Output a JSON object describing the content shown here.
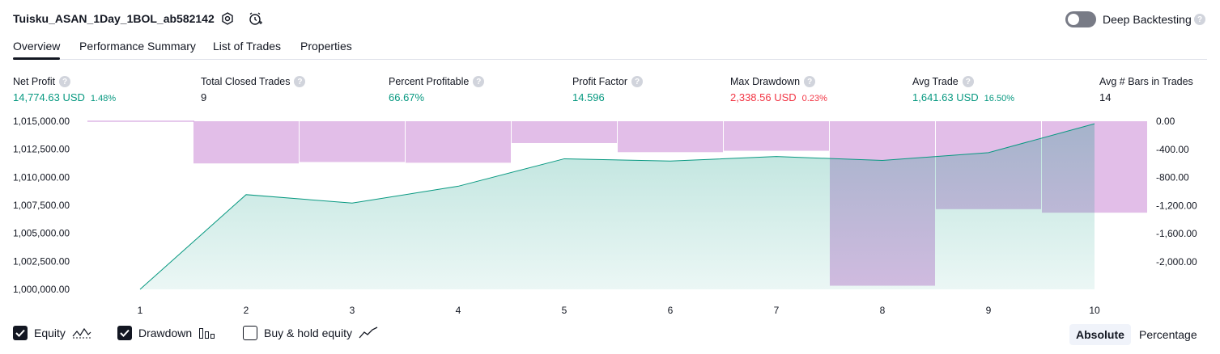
{
  "header": {
    "strategy_name": "Tuisku_ASAN_1Day_1BOL_ab582142",
    "icons": [
      "settings-icon",
      "add-alert-icon"
    ],
    "deep_backtesting_label": "Deep Backtesting",
    "deep_backtesting_enabled": false,
    "help_icon": "?"
  },
  "tabs": [
    {
      "label": "Overview",
      "active": true
    },
    {
      "label": "Performance Summary",
      "active": false
    },
    {
      "label": "List of Trades",
      "active": false
    },
    {
      "label": "Properties",
      "active": false
    }
  ],
  "metrics": [
    {
      "label": "Net Profit",
      "value": "14,774.63 USD",
      "pct": "1.48%",
      "color": "#089981"
    },
    {
      "label": "Total Closed Trades",
      "value": "9",
      "pct": "",
      "color": "#131722"
    },
    {
      "label": "Percent Profitable",
      "value": "66.67%",
      "pct": "",
      "color": "#089981"
    },
    {
      "label": "Profit Factor",
      "value": "14.596",
      "pct": "",
      "color": "#089981"
    },
    {
      "label": "Max Drawdown",
      "value": "2,338.56 USD",
      "pct": "0.23%",
      "color": "#f23645"
    },
    {
      "label": "Avg Trade",
      "value": "1,641.63 USD",
      "pct": "16.50%",
      "color": "#089981"
    },
    {
      "label": "Avg # Bars in Trades",
      "value": "14",
      "pct": "",
      "color": "#131722"
    }
  ],
  "chart_data": {
    "type": "area",
    "x": [
      1,
      2,
      3,
      4,
      5,
      6,
      7,
      8,
      9,
      10
    ],
    "x_tick_labels": [
      "1",
      "2",
      "3",
      "4",
      "5",
      "6",
      "7",
      "8",
      "9",
      "10"
    ],
    "series": [
      {
        "name": "Equity",
        "type": "area",
        "axis": "left",
        "color": "#089981",
        "values": [
          1000000.0,
          1008450.0,
          1007700.0,
          1009200.0,
          1011650.0,
          1011450.0,
          1011850.0,
          1011500.0,
          1012200.0,
          1014774.63
        ]
      },
      {
        "name": "Drawdown",
        "type": "bar",
        "axis": "right",
        "color": "#ce93d8",
        "values": [
          0.0,
          -600.0,
          -580.0,
          -590.0,
          -310.0,
          -440.0,
          -420.0,
          -2338.56,
          -1250.0,
          -1300.0
        ]
      }
    ],
    "left_axis": {
      "ticks": [
        "1,015,000.00",
        "1,012,500.00",
        "1,010,000.00",
        "1,007,500.00",
        "1,005,000.00",
        "1,002,500.00",
        "1,000,000.00"
      ],
      "tick_values": [
        1015000,
        1012500,
        1010000,
        1007500,
        1005000,
        1002500,
        1000000
      ],
      "range": [
        1000000,
        1015000
      ]
    },
    "right_axis": {
      "ticks": [
        "0.00",
        "-400.00",
        "-800.00",
        "-1,200.00",
        "-1,600.00",
        "-2,000.00"
      ],
      "tick_values": [
        0,
        -400,
        -800,
        -1200,
        -1600,
        -2000
      ],
      "range": [
        -2390,
        0
      ]
    },
    "grid": false
  },
  "legend": {
    "items": [
      {
        "label": "Equity",
        "checked": true,
        "icon": "equity-line-icon"
      },
      {
        "label": "Drawdown",
        "checked": true,
        "icon": "drawdown-bars-icon"
      },
      {
        "label": "Buy & hold equity",
        "checked": false,
        "icon": "buy-hold-line-icon"
      }
    ]
  },
  "view_modes": [
    {
      "label": "Absolute",
      "active": true
    },
    {
      "label": "Percentage",
      "active": false
    }
  ]
}
